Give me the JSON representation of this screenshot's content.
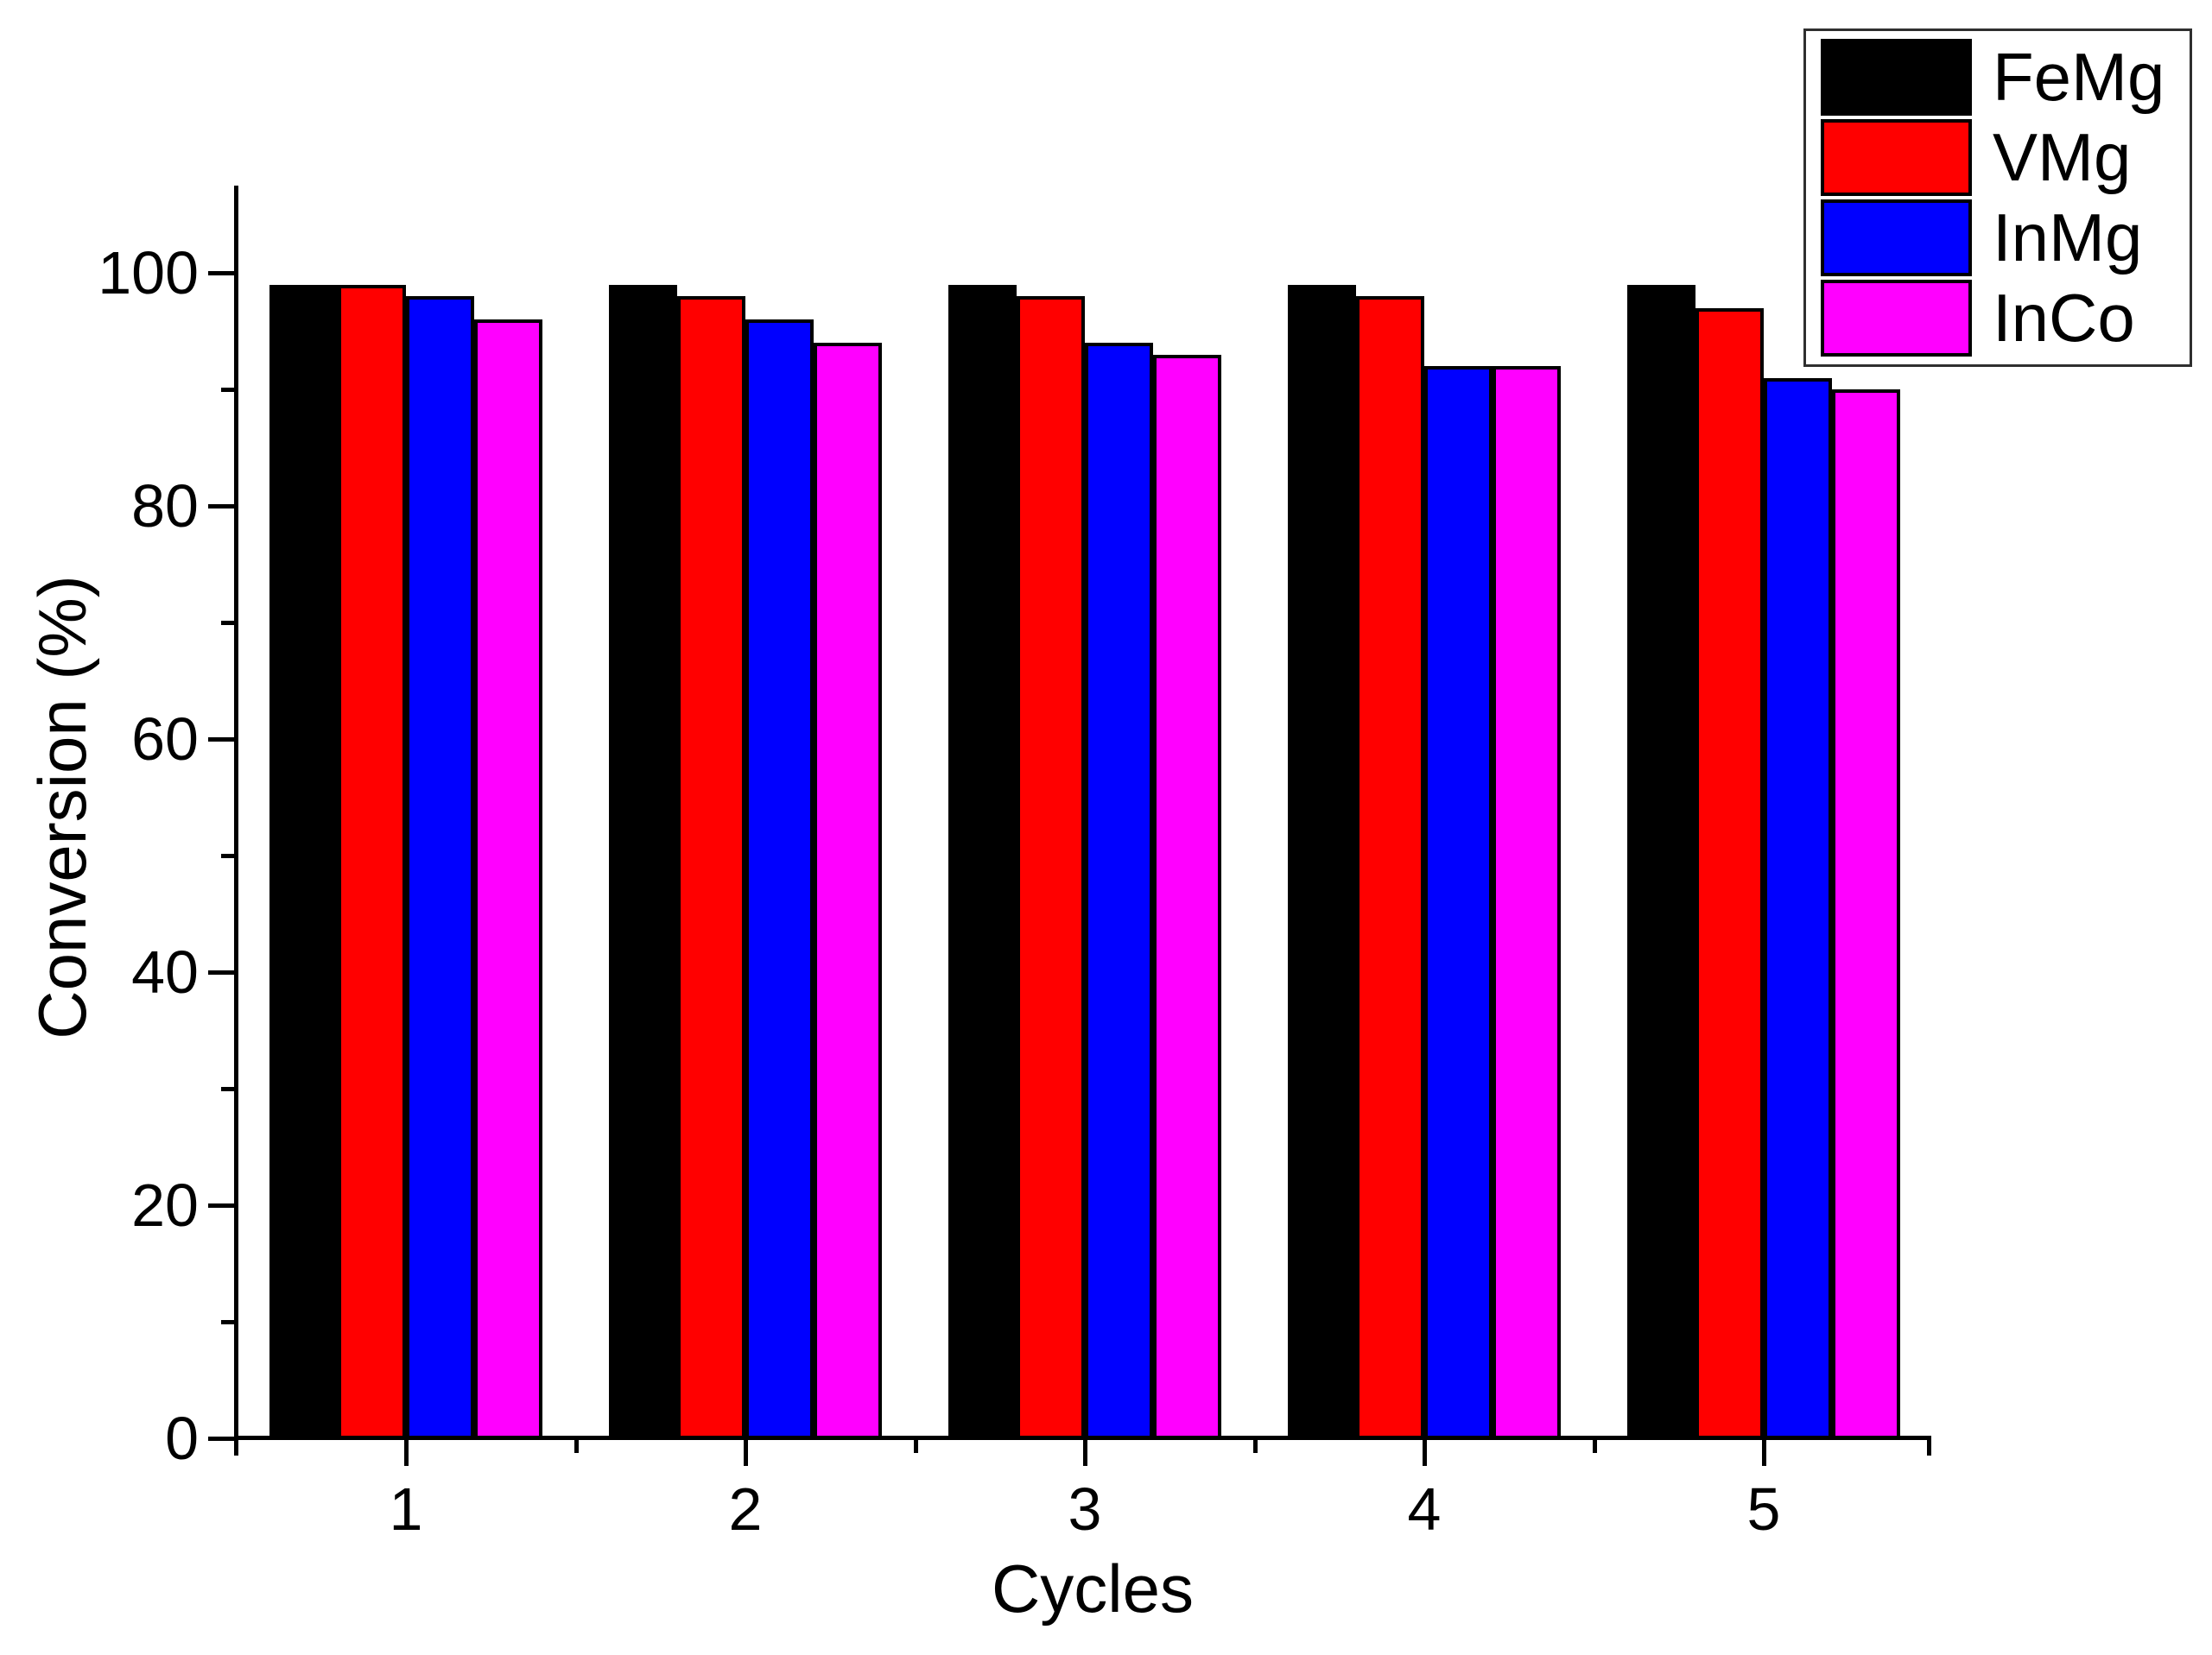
{
  "chart_data": {
    "type": "bar",
    "title": "",
    "xlabel": "Cycles",
    "ylabel": "Conversion (%)",
    "categories": [
      "1",
      "2",
      "3",
      "4",
      "5"
    ],
    "series": [
      {
        "name": "FeMg",
        "color": "#000000",
        "values": [
          99,
          99,
          99,
          99,
          99
        ]
      },
      {
        "name": "VMg",
        "color": "#ff0000",
        "values": [
          99,
          98,
          98,
          98,
          97
        ]
      },
      {
        "name": "InMg",
        "color": "#0000ff",
        "values": [
          98,
          96,
          94,
          92,
          91
        ]
      },
      {
        "name": "InCo",
        "color": "#ff00ff",
        "values": [
          96,
          94,
          93,
          92,
          90
        ]
      }
    ],
    "ylim": [
      0,
      107.5
    ],
    "y_ticks": [
      0,
      20,
      40,
      60,
      80,
      100
    ],
    "y_minor_ticks": [
      10,
      30,
      50,
      70,
      90
    ],
    "x_minor_positions": [
      1.5,
      2.5,
      3.5,
      4.5
    ],
    "grid": false,
    "legend_position": "top-right",
    "bar_edge_color": "#000000",
    "axis_color": "#000000",
    "background_color": "#ffffff"
  }
}
